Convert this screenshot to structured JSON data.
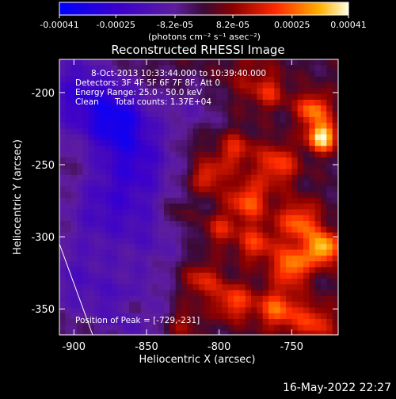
{
  "chart_data": {
    "type": "heatmap",
    "title": "Reconstructed RHESSI Image",
    "xlabel": "Heliocentric X (arcsec)",
    "ylabel": "Heliocentric Y (arcsec)",
    "xlim": [
      -910,
      -718
    ],
    "ylim": [
      -368,
      -177
    ],
    "xticks": [
      -900,
      -850,
      -800,
      -750
    ],
    "yticks": [
      -200,
      -250,
      -300,
      -350
    ],
    "colorbar": {
      "min": -0.00041,
      "max": 0.00041,
      "tick_values": [
        -0.00041,
        -0.00025,
        -8.2e-05,
        8.2e-05,
        0.00025,
        0.00041
      ],
      "tick_labels": [
        "-0.00041",
        "-0.00025",
        "-8.2e-05",
        "8.2e-05",
        "0.00025",
        "0.00041"
      ],
      "unit_label": "(photons cm⁻² s⁻¹ asec⁻²)"
    },
    "annotations": {
      "time": "8-Oct-2013 10:33:44.000 to 10:39:40.000",
      "detectors": "Detectors: 3F 4F 5F 6F 7F 8F, Att 0",
      "energy": "Energy Range: 25.0 - 50.0 keV",
      "algorithm": "Clean",
      "counts": "Total counts: 1.37E+04",
      "peak": "Position of Peak = [-729,-231]"
    },
    "peak": [
      -729,
      -231
    ],
    "blobs": [
      {
        "x": -900,
        "y": -200,
        "v": -0.00022,
        "s": 22
      },
      {
        "x": -870,
        "y": -220,
        "v": -0.00028,
        "s": 16
      },
      {
        "x": -855,
        "y": -250,
        "v": -0.0002,
        "s": 18
      },
      {
        "x": -880,
        "y": -280,
        "v": -0.00018,
        "s": 20
      },
      {
        "x": -900,
        "y": -330,
        "v": -0.00015,
        "s": 20
      },
      {
        "x": -845,
        "y": -300,
        "v": -0.00012,
        "s": 18
      },
      {
        "x": -860,
        "y": -350,
        "v": -0.00016,
        "s": 18
      },
      {
        "x": -820,
        "y": -215,
        "v": -0.0001,
        "s": 16
      },
      {
        "x": -780,
        "y": -190,
        "v": 8e-05,
        "s": 14
      },
      {
        "x": -729,
        "y": -231,
        "v": 0.00041,
        "s": 7
      },
      {
        "x": -735,
        "y": -212,
        "v": 0.00028,
        "s": 8
      },
      {
        "x": -760,
        "y": -250,
        "v": 0.00022,
        "s": 10
      },
      {
        "x": -790,
        "y": -240,
        "v": 0.00018,
        "s": 9
      },
      {
        "x": -808,
        "y": -258,
        "v": 0.0002,
        "s": 8
      },
      {
        "x": -780,
        "y": -275,
        "v": 0.00024,
        "s": 10
      },
      {
        "x": -745,
        "y": -290,
        "v": 0.00026,
        "s": 10
      },
      {
        "x": -728,
        "y": -308,
        "v": 0.00036,
        "s": 8
      },
      {
        "x": -750,
        "y": -320,
        "v": 0.0003,
        "s": 9
      },
      {
        "x": -775,
        "y": -305,
        "v": 0.0002,
        "s": 9
      },
      {
        "x": -800,
        "y": -295,
        "v": 0.00016,
        "s": 8
      },
      {
        "x": -812,
        "y": -330,
        "v": 0.00018,
        "s": 9
      },
      {
        "x": -790,
        "y": -345,
        "v": 0.00022,
        "s": 9
      },
      {
        "x": -760,
        "y": -350,
        "v": 0.00025,
        "s": 10
      },
      {
        "x": -735,
        "y": -360,
        "v": 0.0002,
        "s": 10
      },
      {
        "x": -825,
        "y": -360,
        "v": 0.00012,
        "s": 8
      },
      {
        "x": -858,
        "y": -348,
        "v": 0.00016,
        "s": 5
      },
      {
        "x": -830,
        "y": -285,
        "v": 0.0001,
        "s": 7
      },
      {
        "x": -765,
        "y": -200,
        "v": 0.00014,
        "s": 8
      },
      {
        "x": -818,
        "y": -232,
        "v": 8e-05,
        "s": 7
      }
    ]
  },
  "footer": {
    "date": "16-May-2022 22:27"
  }
}
